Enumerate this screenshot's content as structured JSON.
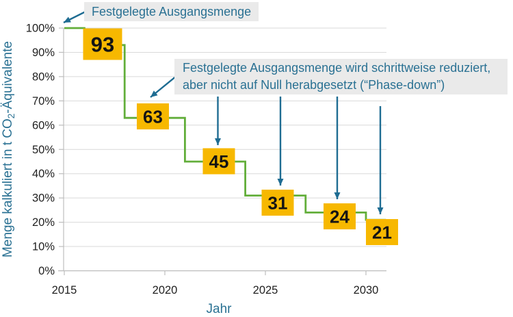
{
  "chart_data": {
    "type": "line",
    "subtype": "step",
    "title": "",
    "xlabel": "Jahr",
    "ylabel": {
      "prefix": "Menge kalkuliert in t CO",
      "subscript": "2",
      "suffix": "-Äquivalente"
    },
    "xlim": [
      2015,
      2031
    ],
    "ylim": [
      0,
      100
    ],
    "grid": "horizontal",
    "legend": "none",
    "x_ticks": [
      {
        "value": 2015,
        "label": "2015"
      },
      {
        "value": 2020,
        "label": "2020"
      },
      {
        "value": 2025,
        "label": "2025"
      },
      {
        "value": 2030,
        "label": "2030"
      }
    ],
    "y_ticks": [
      {
        "value": 0,
        "label": "0%"
      },
      {
        "value": 10,
        "label": "10%"
      },
      {
        "value": 20,
        "label": "20%"
      },
      {
        "value": 30,
        "label": "30%"
      },
      {
        "value": 40,
        "label": "40%"
      },
      {
        "value": 50,
        "label": "50%"
      },
      {
        "value": 60,
        "label": "60%"
      },
      {
        "value": 70,
        "label": "70%"
      },
      {
        "value": 80,
        "label": "80%"
      },
      {
        "value": 90,
        "label": "90%"
      },
      {
        "value": 100,
        "label": "100%"
      }
    ],
    "series": [
      {
        "name": "phase-down-schedule",
        "color": "#62AE3A",
        "points": [
          [
            2015,
            100
          ],
          [
            2016,
            100
          ],
          [
            2016,
            93
          ],
          [
            2018,
            93
          ],
          [
            2018,
            63
          ],
          [
            2021,
            63
          ],
          [
            2021,
            45
          ],
          [
            2024,
            45
          ],
          [
            2024,
            31
          ],
          [
            2027,
            31
          ],
          [
            2027,
            24
          ],
          [
            2030,
            24
          ],
          [
            2030,
            21
          ],
          [
            2031,
            21
          ]
        ]
      }
    ],
    "value_labels": [
      {
        "text": "93",
        "value": 93
      },
      {
        "text": "63",
        "value": 63
      },
      {
        "text": "45",
        "value": 45
      },
      {
        "text": "31",
        "value": 31
      },
      {
        "text": "24",
        "value": 24
      },
      {
        "text": "21",
        "value": 21
      }
    ]
  },
  "annotations": {
    "callout_top": "Festgelegte Ausgangsmenge",
    "callout_main_line1": "Festgelegte Ausgangsmenge wird schrittweise reduziert,",
    "callout_main_line2": "aber nicht auf Null herabgesetzt (“Phase-down”)"
  },
  "colors": {
    "background": "#FFFFFF",
    "accent_teal": "#2A7193",
    "arrow_blue": "#1E6C92",
    "step_line_green": "#62AE3A",
    "label_box_yellow": "#F7B800",
    "label_text": "#141414",
    "gridline": "#D9D9D9",
    "axis_line": "#BDBDBD",
    "tick_text": "#1F1F1F",
    "callout_bg": "#EAEAEA"
  }
}
